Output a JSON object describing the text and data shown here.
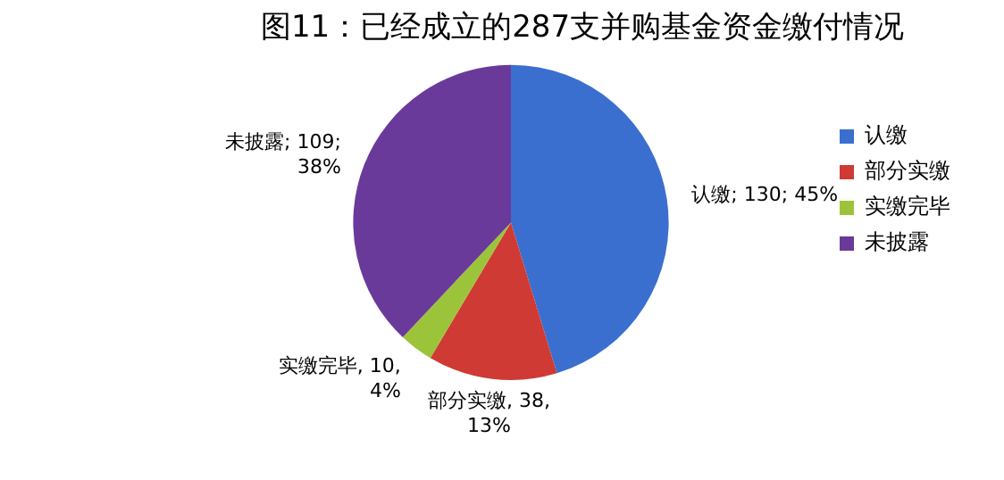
{
  "chart_data": {
    "type": "pie",
    "title": "图11：已经成立的287支并购基金资金缴付情况",
    "categories": [
      "认缴",
      "部分实缴",
      "实缴完毕",
      "未披露"
    ],
    "values": [
      130,
      38,
      10,
      109
    ],
    "colors": [
      "#3a6fcf",
      "#d03a34",
      "#9cc43a",
      "#6a3a9a"
    ],
    "value_labels": [
      "认缴; 130; 45%",
      "部分实缴, 38, 13%",
      "实缴完毕, 10, 4%",
      "未披露; 109; 38%"
    ],
    "legend": "right"
  }
}
